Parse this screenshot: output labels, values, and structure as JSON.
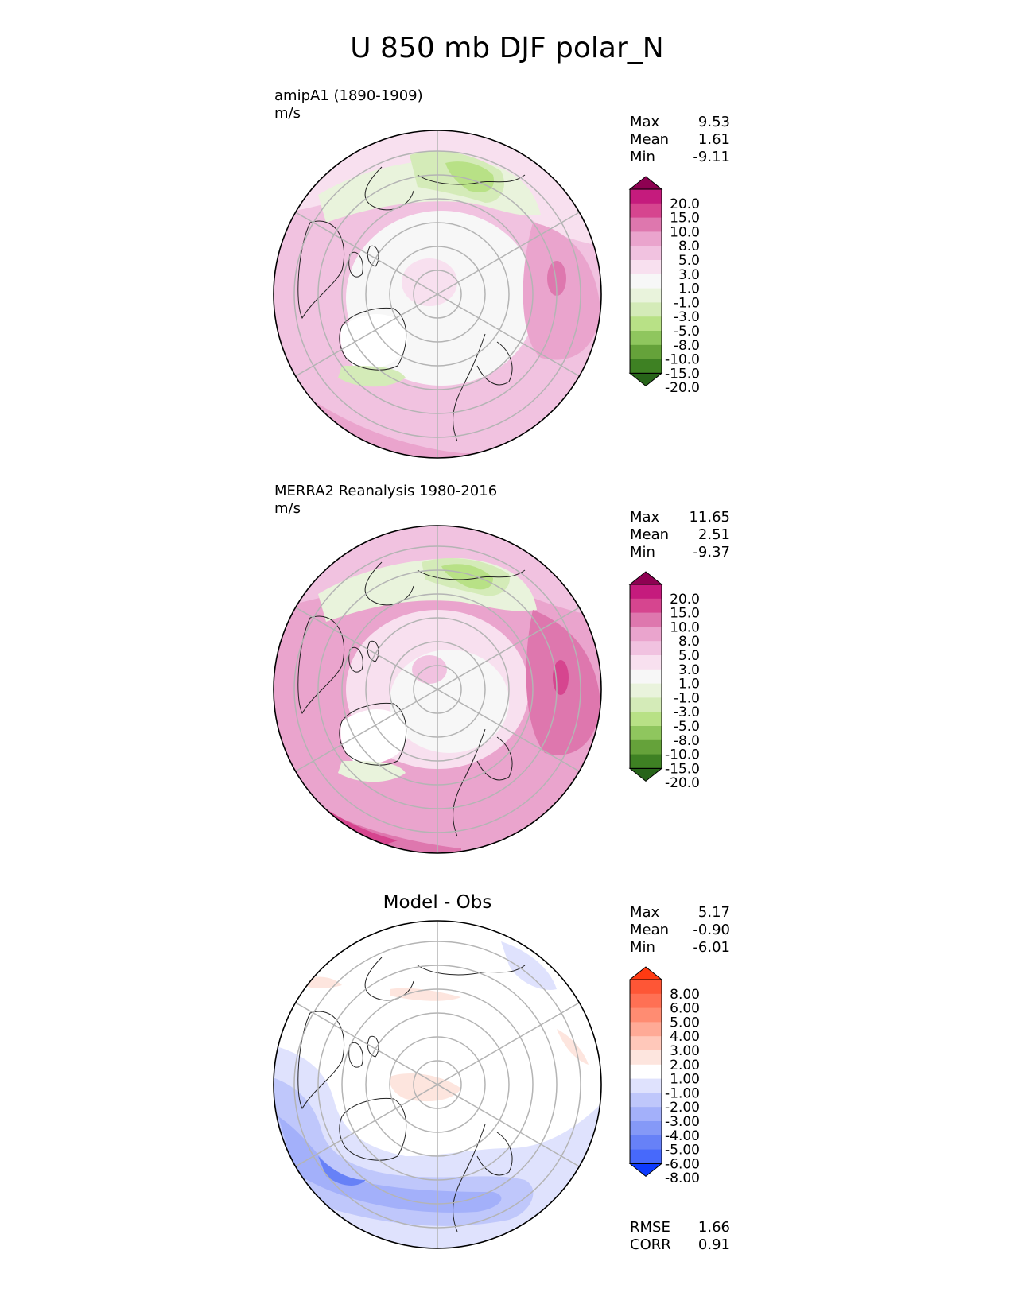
{
  "title": "U 850 mb DJF polar_N",
  "panels": [
    {
      "id": "model",
      "title": "amipA1 (1890-1909)",
      "units": "m/s",
      "stats": [
        {
          "label": "Max",
          "value": "9.53"
        },
        {
          "label": "Mean",
          "value": "1.61"
        },
        {
          "label": "Min",
          "value": "-9.11"
        }
      ],
      "colorbar": {
        "labels": [
          "20.0",
          "15.0",
          "10.0",
          "8.0",
          "5.0",
          "3.0",
          "1.0",
          "-1.0",
          "-3.0",
          "-5.0",
          "-8.0",
          "-10.0",
          "-15.0",
          "-20.0"
        ],
        "colors": [
          "#8e0152",
          "#c51b7d",
          "#d6458f",
          "#de77ae",
          "#eaa4cd",
          "#f1c2e0",
          "#f8e0ef",
          "#f7f7f7",
          "#e9f3dc",
          "#d4ebb8",
          "#b8e186",
          "#8fc65e",
          "#65a23a",
          "#3e8123",
          "#276419"
        ]
      }
    },
    {
      "id": "obs",
      "title": "MERRA2 Reanalysis 1980-2016",
      "units": "m/s",
      "stats": [
        {
          "label": "Max",
          "value": "11.65"
        },
        {
          "label": "Mean",
          "value": "2.51"
        },
        {
          "label": "Min",
          "value": "-9.37"
        }
      ],
      "colorbar": {
        "labels": [
          "20.0",
          "15.0",
          "10.0",
          "8.0",
          "5.0",
          "3.0",
          "1.0",
          "-1.0",
          "-3.0",
          "-5.0",
          "-8.0",
          "-10.0",
          "-15.0",
          "-20.0"
        ],
        "colors": [
          "#8e0152",
          "#c51b7d",
          "#d6458f",
          "#de77ae",
          "#eaa4cd",
          "#f1c2e0",
          "#f8e0ef",
          "#f7f7f7",
          "#e9f3dc",
          "#d4ebb8",
          "#b8e186",
          "#8fc65e",
          "#65a23a",
          "#3e8123",
          "#276419"
        ]
      }
    },
    {
      "id": "diff",
      "title": "Model - Obs",
      "stats": [
        {
          "label": "Max",
          "value": "5.17"
        },
        {
          "label": "Mean",
          "value": "-0.90"
        },
        {
          "label": "Min",
          "value": "-6.01"
        }
      ],
      "extra_stats": [
        {
          "label": "RMSE",
          "value": "1.66"
        },
        {
          "label": "CORR",
          "value": "0.91"
        }
      ],
      "colorbar": {
        "labels": [
          "8.00",
          "6.00",
          "5.00",
          "4.00",
          "3.00",
          "2.00",
          "1.00",
          "-1.00",
          "-2.00",
          "-3.00",
          "-4.00",
          "-5.00",
          "-6.00",
          "-8.00"
        ],
        "colors": [
          "#ff3a12",
          "#fe5636",
          "#ff7054",
          "#ff8c72",
          "#ffaa96",
          "#ffc8ba",
          "#fde5de",
          "#ffffff",
          "#dfe2fd",
          "#bfc7fb",
          "#a3b0fa",
          "#8599f7",
          "#6781f7",
          "#4769fb",
          "#0d3afe"
        ]
      }
    }
  ]
}
